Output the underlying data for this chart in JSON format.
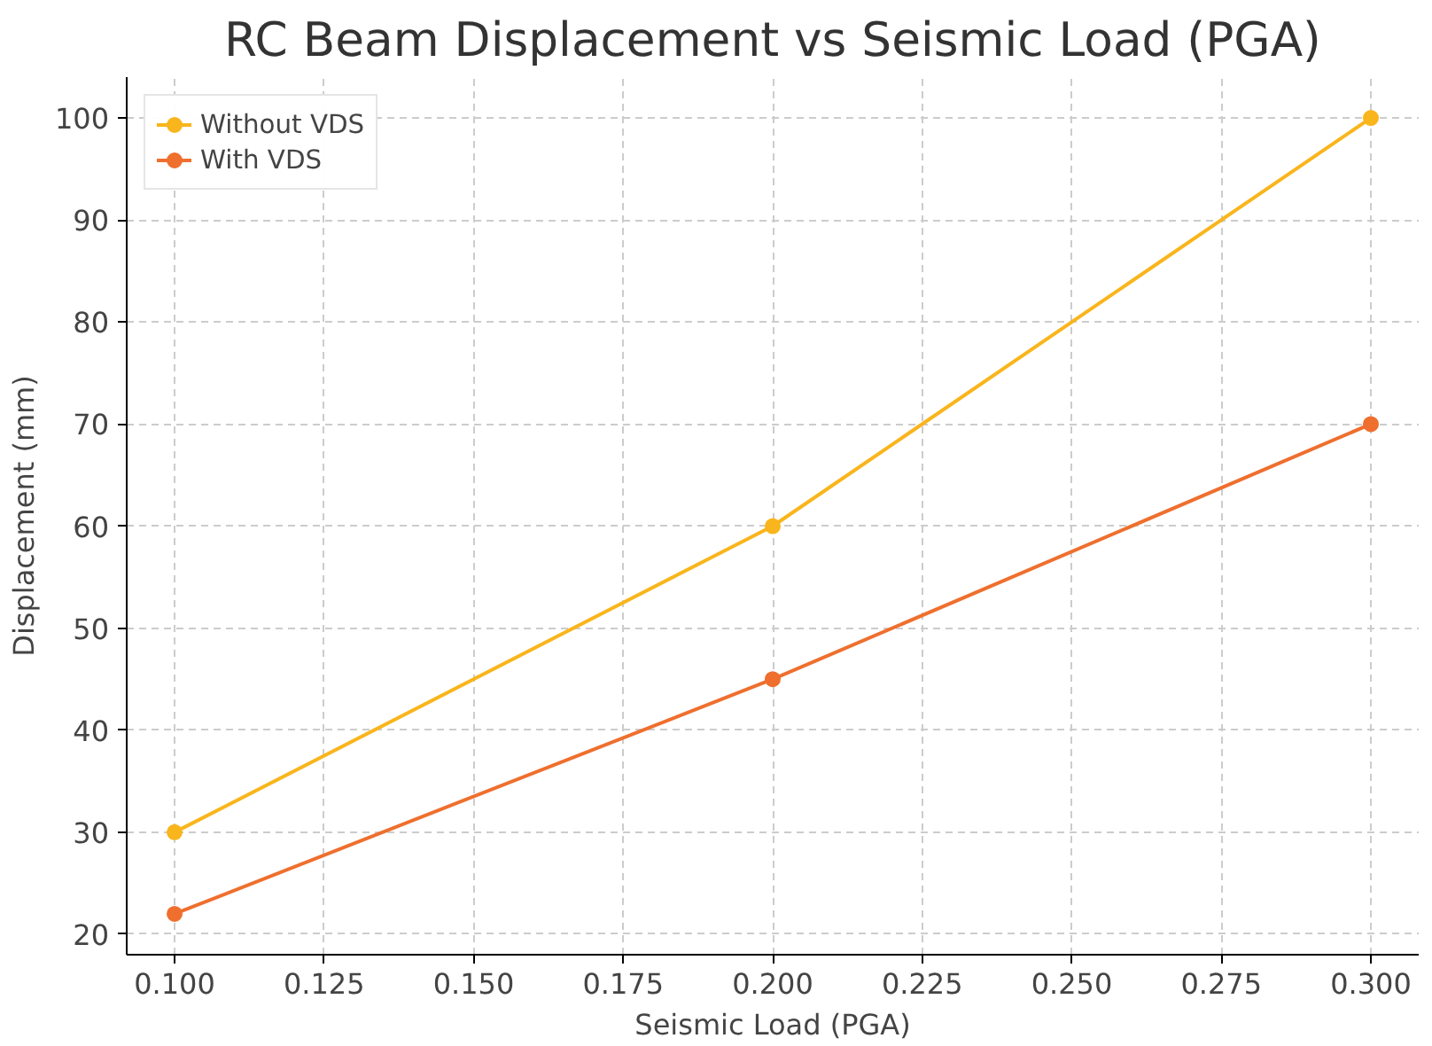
{
  "chart_data": {
    "type": "line",
    "title": "RC Beam Displacement vs Seismic Load (PGA)",
    "xlabel": "Seismic Load (PGA)",
    "ylabel": "Displacement (mm)",
    "x": [
      0.1,
      0.2,
      0.3
    ],
    "series": [
      {
        "name": "Without VDS",
        "color": "#f9b51c",
        "values": [
          30,
          60,
          100
        ]
      },
      {
        "name": "With VDS",
        "color": "#ef6f2e",
        "values": [
          22,
          45,
          70
        ]
      }
    ],
    "xlim": [
      0.092,
      0.308
    ],
    "ylim": [
      18,
      104
    ],
    "xticks": [
      {
        "value": 0.1,
        "label": "0.100"
      },
      {
        "value": 0.125,
        "label": "0.125"
      },
      {
        "value": 0.15,
        "label": "0.150"
      },
      {
        "value": 0.175,
        "label": "0.175"
      },
      {
        "value": 0.2,
        "label": "0.200"
      },
      {
        "value": 0.225,
        "label": "0.225"
      },
      {
        "value": 0.25,
        "label": "0.250"
      },
      {
        "value": 0.275,
        "label": "0.275"
      },
      {
        "value": 0.3,
        "label": "0.300"
      }
    ],
    "yticks": [
      20,
      30,
      40,
      50,
      60,
      70,
      80,
      90,
      100
    ],
    "grid": true,
    "legend": "top left",
    "marker": "circle",
    "line_style": "solid"
  }
}
